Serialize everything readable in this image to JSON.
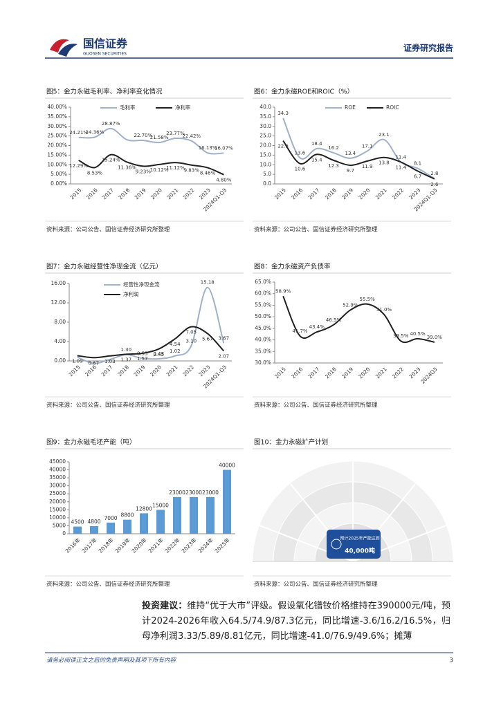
{
  "header": {
    "brand": "国信证券",
    "brand_en": "GUOSEN SECURITIES",
    "report_type": "证券研究报告"
  },
  "chart_data": [
    {
      "type": "line",
      "title": "图5：金力永磁毛利率、净利率变化情况",
      "categories": [
        "2015",
        "2016",
        "2017",
        "2018",
        "2019",
        "2020",
        "2021",
        "2022",
        "2023",
        "2024Q1-Q3"
      ],
      "series": [
        {
          "name": "毛利率",
          "color": "#9fb0c8",
          "values": [
            24.21,
            24.36,
            28.87,
            23,
            22.7,
            21.58,
            23.77,
            22.42,
            16.13,
            16.07
          ],
          "value_labels": [
            "24.21%",
            "24.36%",
            "28.87%",
            null,
            "22.70%",
            "21.58%",
            "23.77%",
            "22.42%",
            "16.13%",
            "16.07%"
          ]
        },
        {
          "name": "净利率",
          "color": "#1f1f1f",
          "values": [
            12.29,
            8.53,
            15.24,
            11.36,
            9.23,
            10.12,
            11.12,
            9.83,
            8.46,
            4.8
          ],
          "value_labels": [
            "12.29%",
            "8.53%",
            "15.24%",
            "11.36%",
            "9.23%",
            "10.12%",
            "11.12%",
            "9.83%",
            "8.46%",
            "4.80%"
          ]
        }
      ],
      "ylim": [
        0,
        40
      ],
      "yticks": [
        {
          "value": 0,
          "label": "0.00%"
        },
        {
          "value": 5,
          "label": "5.00%"
        },
        {
          "value": 10,
          "label": "10.00%"
        },
        {
          "value": 15,
          "label": "15.00%"
        },
        {
          "value": 20,
          "label": "20.00%"
        },
        {
          "value": 25,
          "label": "25.00%"
        },
        {
          "value": 30,
          "label": "30.00%"
        },
        {
          "value": 35,
          "label": "35.00%"
        },
        {
          "value": 40,
          "label": "40.00%"
        }
      ]
    },
    {
      "type": "line",
      "title": "图6：金力永磁ROE和ROIC（%）",
      "categories": [
        "2015",
        "2016",
        "2017",
        "2018",
        "2019",
        "2020",
        "2021",
        "2022",
        "2023",
        "2024Q1-Q3"
      ],
      "series": [
        {
          "name": "ROE",
          "color": "#9fb0c8",
          "values": [
            34.3,
            13.6,
            18.4,
            16.2,
            13.4,
            17.1,
            23.1,
            11.4,
            8.1,
            2.8
          ]
        },
        {
          "name": "ROIC",
          "color": "#1f1f1f",
          "values": [
            22.5,
            10.6,
            15.4,
            12.3,
            9.7,
            11.9,
            13.8,
            11.4,
            6.7,
            2.6
          ]
        }
      ],
      "ylim": [
        0,
        40
      ],
      "yticks": [
        {
          "value": 0,
          "label": "0.0"
        },
        {
          "value": 5,
          "label": "5.0"
        },
        {
          "value": 10,
          "label": "10.0"
        },
        {
          "value": 15,
          "label": "15.0"
        },
        {
          "value": 20,
          "label": "20.0"
        },
        {
          "value": 25,
          "label": "25.0"
        },
        {
          "value": 30,
          "label": "30.0"
        },
        {
          "value": 35,
          "label": "35.0"
        },
        {
          "value": 40,
          "label": "40.0"
        }
      ]
    },
    {
      "type": "line",
      "title": "图7：金力永磁经营性净现金流（亿元）",
      "categories": [
        "2015",
        "2016",
        "2017",
        "2018",
        "2019",
        "2020",
        "2021",
        "2022",
        "2023",
        "2024Q1-Q3"
      ],
      "series": [
        {
          "name": "经营性净现金流",
          "color": "#9fb0c8",
          "values": [
            0.8,
            -0.5,
            0.3,
            1.3,
            0.53,
            0.43,
            1.02,
            3.1,
            15.18,
            3.67
          ],
          "value_labels": [
            null,
            null,
            null,
            "1.30",
            "0.53",
            "0.43",
            "1.02",
            "3.10",
            "15.18",
            "3.67"
          ]
        },
        {
          "name": "净利润",
          "color": "#1f1f1f",
          "values": [
            1.09,
            0.67,
            1.03,
            1.37,
            1.57,
            2.45,
            4.54,
            7.05,
            5.67,
            2.07
          ],
          "value_labels": [
            "1.09",
            "0.67",
            "1.03",
            "1.37",
            "1.57",
            "2.45",
            "4.54",
            "7.05",
            "5.67",
            "2.07"
          ]
        }
      ],
      "ylim": [
        0,
        16
      ],
      "yticks": [
        {
          "value": 0,
          "label": "0.00"
        },
        {
          "value": 4,
          "label": "4.00"
        },
        {
          "value": 8,
          "label": "8.00"
        },
        {
          "value": 12,
          "label": "12.00"
        },
        {
          "value": 16,
          "label": "16.00"
        }
      ]
    },
    {
      "type": "line",
      "title": "图8：金力永磁资产负债率",
      "categories": [
        "2015",
        "2016",
        "2017",
        "2018",
        "2019",
        "2020",
        "2021",
        "2022",
        "2023",
        "2024Q3"
      ],
      "series": [
        {
          "color": "#1f1f1f",
          "values": [
            58.9,
            41.7,
            43.4,
            46.5,
            52.9,
            55.5,
            51.0,
            39.5,
            40.5,
            39.0
          ],
          "value_labels": [
            "58.9%",
            "41.7%",
            "43.4%",
            "46.5%",
            "52.9%",
            "55.5%",
            "51.0%",
            "39.5%",
            "40.5%",
            "39.0%"
          ]
        }
      ],
      "ylim": [
        30,
        65
      ],
      "yticks": [
        {
          "value": 30,
          "label": "30.0%"
        },
        {
          "value": 35,
          "label": "35.0%"
        },
        {
          "value": 40,
          "label": "40.0%"
        },
        {
          "value": 45,
          "label": "45.0%"
        },
        {
          "value": 50,
          "label": "50.0%"
        },
        {
          "value": 55,
          "label": "55.0%"
        },
        {
          "value": 60,
          "label": "60.0%"
        },
        {
          "value": 65,
          "label": "65.0%"
        }
      ]
    },
    {
      "type": "bar",
      "title": "图9：金力永磁毛坯产能（吨）",
      "categories": [
        "2016年",
        "2017年",
        "2018年",
        "2019年",
        "2020年",
        "2021年",
        "2022年",
        "2023年",
        "2024年",
        "2025年"
      ],
      "values": [
        4500,
        4800,
        7000,
        8800,
        12800,
        15000,
        23000,
        23000,
        23000,
        40000
      ],
      "color": "#5b9bd5",
      "ylim": [
        0,
        45000
      ],
      "yticks": [
        0,
        5000,
        10000,
        15000,
        20000,
        25000,
        30000,
        35000,
        40000,
        45000
      ]
    }
  ],
  "figure10": {
    "title": "图10：金力永磁扩产计划",
    "center_label": "预计2025年产能达到",
    "center_value": "40,000吨"
  },
  "sources": [
    "资料来源：公司公告、国信证券经济研究所整理",
    "资料来源：公司公告、国信证券经济研究所整理",
    "资料来源：公司公告、国信证券经济研究所整理",
    "资料来源：公司公告、国信证券经济研究所整理",
    "资料来源：公司公告、国信证券经济研究所整理",
    "资料来源：公司公告、国信证券经济研究所整理"
  ],
  "paragraph": {
    "lead": "投资建议：",
    "body": "维持“优于大市”评级。假设氧化镨钕价格维持在390000元/吨，预计2024-2026年收入64.5/74.9/87.3亿元，同比增速-3.6/16.2/16.5%，归母净利润3.33/5.89/8.81亿元，同比增速-41.0/76.9/49.6%；摊薄"
  },
  "footer": {
    "disclaimer": "请务必阅读正文之后的免责声明及其项下所有内容",
    "page": "3"
  }
}
